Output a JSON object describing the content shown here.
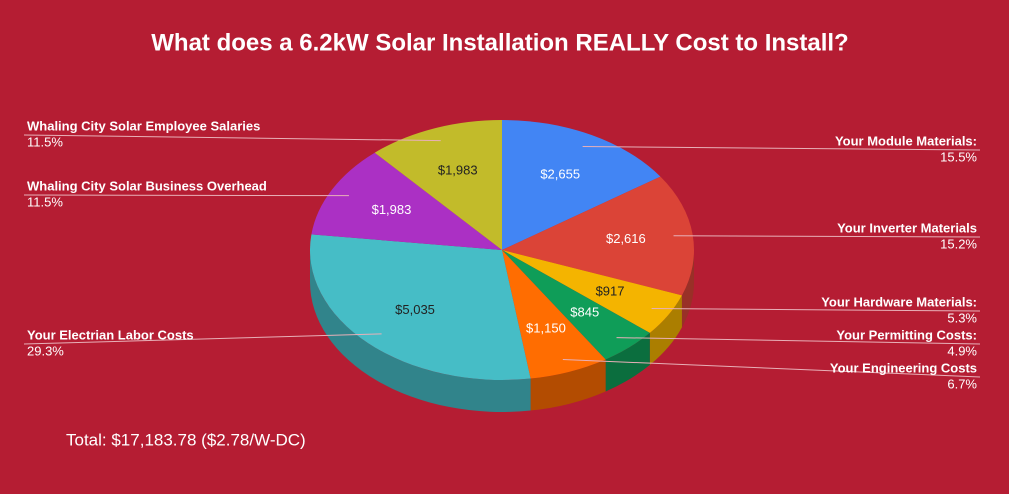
{
  "chart_data": {
    "type": "pie",
    "title": "What does a 6.2kW Solar Installation REALLY Cost to Install?",
    "categories": [
      "Your Module Materials:",
      "Your Inverter Materials",
      "Your Hardware Materials:",
      "Your Permitting Costs:",
      "Your Engineering Costs",
      "Your Electrian Labor Costs",
      "Whaling City Solar Business Overhead",
      "Whaling City Solar Employee Salaries"
    ],
    "values": [
      2655,
      2616,
      917,
      845,
      1150,
      5035,
      1983,
      1983
    ],
    "value_labels": [
      "$2,655",
      "$2,616",
      "$917",
      "$845",
      "$1,150",
      "$5,035",
      "$1,983",
      "$1,983"
    ],
    "percent_labels": [
      "15.5%",
      "15.2%",
      "5.3%",
      "4.9%",
      "6.7%",
      "29.3%",
      "11.5%",
      "11.5%"
    ],
    "colors": [
      "#4285f4",
      "#db4437",
      "#f4b400",
      "#0f9d58",
      "#ff6d01",
      "#46bdc6",
      "#ab30c4",
      "#c2bb2a"
    ],
    "total": "Total: $17,183.78  ($2.78/W-DC)"
  }
}
